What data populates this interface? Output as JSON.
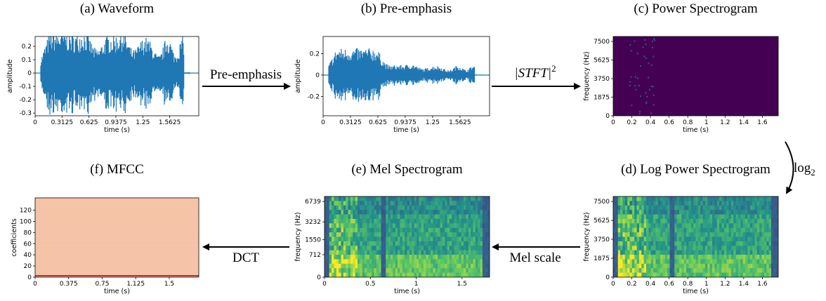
{
  "panels": [
    {
      "type": "line",
      "title": "(a) Waveform",
      "xlabel": "time (s)",
      "ylabel": "amplitude",
      "color": "#1f77b4",
      "xlim": [
        0,
        1.9
      ],
      "ylim": [
        -0.32,
        0.274
      ],
      "xticks": [
        0,
        0.3125,
        0.625,
        0.9375,
        1.25,
        1.5625
      ],
      "yticks": [
        -0.3,
        -0.2,
        -0.1,
        0.0,
        0.1,
        0.2
      ]
    },
    {
      "type": "line",
      "title": "(b) Pre-emphasis",
      "xlabel": "time (s)",
      "ylabel": "amplitude",
      "color": "#1f77b4",
      "xlim": [
        0,
        1.9
      ],
      "ylim": [
        -0.38,
        0.36
      ],
      "xticks": [
        0,
        0.3125,
        0.625,
        0.9375,
        1.25,
        1.5625
      ],
      "yticks": [
        -0.2,
        0.0,
        0.2
      ]
    },
    {
      "type": "heatmap",
      "title": "(c) Power Spectrogram",
      "xlabel": "time (s)",
      "ylabel": "frequency (Hz)",
      "colormap": "power",
      "xlim": [
        0,
        1.77
      ],
      "ylim": [
        0,
        8000
      ],
      "xticks": [
        0,
        0.2,
        0.4,
        0.6,
        0.8,
        1,
        1.2,
        1.4,
        1.6
      ],
      "yticks": [
        0,
        1875,
        3750,
        5625,
        7500
      ]
    },
    {
      "type": "heatmap",
      "title": "(d) Log Power Spectrogram",
      "xlabel": "time (s)",
      "ylabel": "frequency (Hz)",
      "colormap": "viridis",
      "xlim": [
        0,
        1.77
      ],
      "ylim": [
        0,
        8000
      ],
      "xticks": [
        0,
        0.2,
        0.4,
        0.6,
        0.8,
        1,
        1.2,
        1.4,
        1.6
      ],
      "yticks": [
        0,
        1875,
        3750,
        5625,
        7500
      ]
    },
    {
      "type": "heatmap",
      "title": "(e) Mel Spectrogram",
      "xlabel": "time (s)",
      "ylabel": "frequency (Hz)",
      "colormap": "viridis",
      "yscale": "mel",
      "xlim": [
        0,
        1.8
      ],
      "ylim": [
        0,
        8000
      ],
      "xticks": [
        0,
        0.5,
        1,
        1.5
      ],
      "yticks": [
        0,
        712,
        1550,
        3232,
        6739
      ]
    },
    {
      "type": "heatmap",
      "title": "(f) MFCC",
      "xlabel": "time (s)",
      "ylabel": "coefficients",
      "colormap": "mfcc",
      "xlim": [
        0,
        1.83
      ],
      "ylim": [
        0,
        142
      ],
      "xticks": [
        0,
        0.375,
        0.75,
        1.125,
        1.5
      ],
      "yticks": [
        0,
        20,
        40,
        60,
        80,
        100,
        120
      ]
    }
  ],
  "arrows": [
    {
      "label": "Pre-emphasis"
    },
    {
      "label": "|STFT|",
      "sup": "2"
    },
    {
      "label": "log",
      "sub": "2"
    },
    {
      "label": "Mel scale"
    },
    {
      "label": "DCT"
    }
  ]
}
